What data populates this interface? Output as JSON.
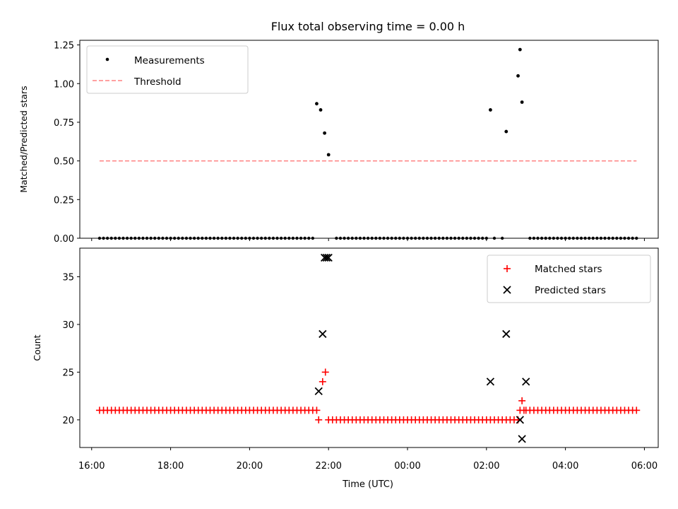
{
  "figure": {
    "title": "Flux total observing time = 0.00 h"
  },
  "colors": {
    "measurement": "#000000",
    "threshold": "#ff8080",
    "matched": "#ff0000",
    "predicted": "#000000",
    "axis": "#000000"
  },
  "chart_data": [
    {
      "type": "scatter",
      "name": "ratio-panel",
      "ylabel": "Matched/Predicted stars",
      "xlabel": "",
      "xlim": [
        -8.3,
        6.35
      ],
      "ylim": [
        0,
        1.28
      ],
      "yticks": [
        0.0,
        0.25,
        0.5,
        0.75,
        1.0,
        1.25
      ],
      "ytick_labels": [
        "0.00",
        "0.25",
        "0.50",
        "0.75",
        "1.00",
        "1.25"
      ],
      "xticks": [
        -8,
        -6,
        -4,
        -2,
        0,
        2,
        4,
        6
      ],
      "legend": {
        "position": "top-left",
        "entries": [
          "Measurements",
          "Threshold"
        ]
      },
      "threshold": {
        "name": "Threshold",
        "value": 0.5,
        "x": [
          -7.8,
          5.8
        ]
      },
      "measurements": {
        "name": "Measurements",
        "x_start": -7.8,
        "x_end": 5.8,
        "x_step": 0.1,
        "nonzero": [
          {
            "x": -2.3,
            "y": 0.87
          },
          {
            "x": -2.2,
            "y": 0.83
          },
          {
            "x": -2.1,
            "y": 0.68
          },
          {
            "x": -2.0,
            "y": 0.54
          },
          {
            "x": 2.1,
            "y": 0.83
          },
          {
            "x": 2.5,
            "y": 0.69
          },
          {
            "x": 2.8,
            "y": 1.05
          },
          {
            "x": 2.85,
            "y": 1.22
          },
          {
            "x": 2.9,
            "y": 0.88
          }
        ],
        "missing": [
          -1.95,
          2.3,
          2.6,
          2.7,
          2.95
        ]
      }
    },
    {
      "type": "scatter",
      "name": "count-panel",
      "ylabel": "Count",
      "xlabel": "Time (UTC)",
      "xlim": [
        -8.3,
        6.35
      ],
      "ylim": [
        17.1,
        38.0
      ],
      "yticks": [
        20,
        25,
        30,
        35
      ],
      "ytick_labels": [
        "20",
        "25",
        "30",
        "35"
      ],
      "xticks": [
        -8,
        -6,
        -4,
        -2,
        0,
        2,
        4,
        6
      ],
      "xtick_labels": [
        "16:00",
        "18:00",
        "20:00",
        "22:00",
        "00:00",
        "02:00",
        "04:00",
        "06:00"
      ],
      "legend": {
        "position": "top-right",
        "entries": [
          "Matched stars",
          "Predicted stars"
        ]
      },
      "matched": {
        "name": "Matched stars",
        "runs": [
          {
            "x_start": -7.8,
            "x_end": -2.4,
            "value": 21
          },
          {
            "x_start": -1.9,
            "x_end": 2.8,
            "value": 20
          },
          {
            "x_start": 3.0,
            "x_end": 5.8,
            "value": 21
          }
        ],
        "points": [
          {
            "x": -2.3,
            "y": 21
          },
          {
            "x": -2.25,
            "y": 20
          },
          {
            "x": -2.15,
            "y": 24
          },
          {
            "x": -2.08,
            "y": 25
          },
          {
            "x": -2.0,
            "y": 20
          },
          {
            "x": 2.85,
            "y": 21
          },
          {
            "x": 2.9,
            "y": 22
          },
          {
            "x": 2.95,
            "y": 21
          }
        ]
      },
      "predicted": {
        "name": "Predicted stars",
        "points": [
          {
            "x": -2.25,
            "y": 23
          },
          {
            "x": -2.15,
            "y": 29
          },
          {
            "x": -2.1,
            "y": 37
          },
          {
            "x": -2.05,
            "y": 37
          },
          {
            "x": -2.0,
            "y": 37
          },
          {
            "x": 2.1,
            "y": 24
          },
          {
            "x": 2.5,
            "y": 29
          },
          {
            "x": 2.85,
            "y": 20
          },
          {
            "x": 2.9,
            "y": 18
          },
          {
            "x": 3.0,
            "y": 24
          }
        ]
      }
    }
  ]
}
